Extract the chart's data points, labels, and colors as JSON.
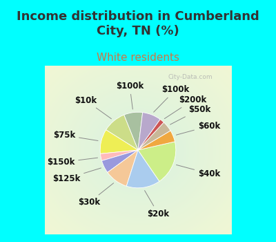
{
  "title": "Income distribution in Cumberland\nCity, TN (%)",
  "subtitle": "White residents",
  "title_color": "#333333",
  "subtitle_color": "#cc7744",
  "background_outer": "#00ffff",
  "background_inner": "#d8ede0",
  "labels": [
    "$100k",
    "$10k",
    "$75k",
    "$150k",
    "$125k",
    "$30k",
    "$20k",
    "$40k",
    "$60k",
    "$50k",
    "$200k",
    "$100k"
  ],
  "values": [
    8.0,
    10.0,
    10.5,
    3.0,
    5.5,
    10.0,
    14.5,
    19.0,
    5.0,
    4.5,
    2.0,
    8.0
  ],
  "colors": [
    "#a8c0a0",
    "#ccdd88",
    "#eeee55",
    "#ffbbbb",
    "#9999dd",
    "#f5c898",
    "#aaccee",
    "#ccee88",
    "#f0a840",
    "#c8b898",
    "#cc5555",
    "#b8a8cc"
  ],
  "startangle": 83,
  "label_fontsize": 8.5,
  "title_fontsize": 13,
  "subtitle_fontsize": 11
}
